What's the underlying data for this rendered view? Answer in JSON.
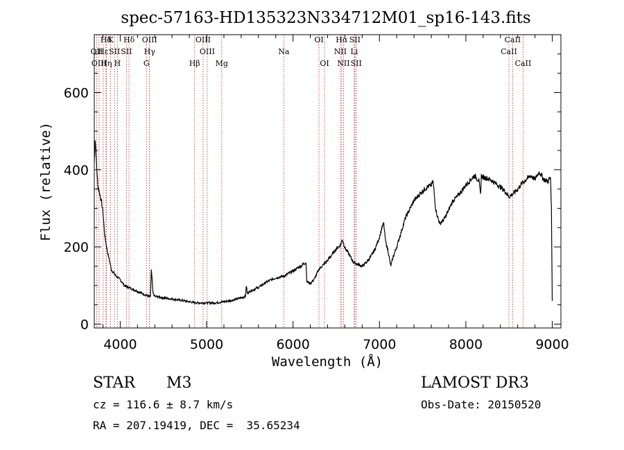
{
  "chart_data": {
    "type": "line",
    "title": "spec-57163-HD135323N334712M01_sp16-143.fits",
    "xlabel": "Wavelength (Å)",
    "ylabel": "Flux (relative)",
    "xlim": [
      3700,
      9100
    ],
    "ylim": [
      -10,
      750
    ],
    "x_ticks": [
      4000,
      5000,
      6000,
      7000,
      8000,
      9000
    ],
    "y_ticks": [
      0,
      200,
      400,
      600
    ],
    "series": [
      {
        "name": "flux",
        "x": [
          3700,
          3710,
          3720,
          3730,
          3740,
          3760,
          3780,
          3800,
          3820,
          3850,
          3880,
          3900,
          3950,
          4000,
          4050,
          4100,
          4150,
          4200,
          4250,
          4300,
          4330,
          4350,
          4360,
          4380,
          4400,
          4500,
          4600,
          4700,
          4800,
          4850,
          4900,
          5000,
          5100,
          5200,
          5300,
          5400,
          5450,
          5460,
          5470,
          5500,
          5600,
          5700,
          5800,
          5850,
          5900,
          6000,
          6100,
          6150,
          6160,
          6200,
          6250,
          6300,
          6400,
          6500,
          6550,
          6570,
          6600,
          6650,
          6700,
          6750,
          6800,
          6850,
          6900,
          6950,
          7000,
          7030,
          7050,
          7070,
          7100,
          7130,
          7160,
          7200,
          7300,
          7400,
          7500,
          7550,
          7600,
          7620,
          7650,
          7670,
          7700,
          7750,
          7800,
          7850,
          7900,
          8000,
          8100,
          8150,
          8170,
          8180,
          8200,
          8250,
          8300,
          8400,
          8450,
          8500,
          8550,
          8600,
          8650,
          8700,
          8750,
          8800,
          8850,
          8900,
          8950,
          8980,
          8990,
          9000
        ],
        "values": [
          420,
          480,
          440,
          400,
          360,
          340,
          320,
          290,
          230,
          190,
          160,
          140,
          125,
          115,
          100,
          95,
          90,
          85,
          80,
          75,
          72,
          70,
          140,
          80,
          72,
          68,
          65,
          62,
          58,
          56,
          55,
          55,
          55,
          58,
          62,
          68,
          72,
          100,
          80,
          85,
          95,
          110,
          120,
          122,
          125,
          138,
          152,
          160,
          110,
          105,
          118,
          142,
          165,
          195,
          205,
          220,
          198,
          180,
          160,
          155,
          150,
          160,
          175,
          195,
          225,
          250,
          260,
          215,
          190,
          150,
          175,
          200,
          275,
          320,
          345,
          355,
          360,
          370,
          300,
          280,
          260,
          272,
          295,
          320,
          330,
          360,
          385,
          372,
          335,
          385,
          380,
          378,
          372,
          355,
          345,
          330,
          338,
          350,
          365,
          375,
          385,
          375,
          395,
          375,
          370,
          380,
          300,
          60
        ]
      }
    ],
    "lines": [
      {
        "label": "Hδ",
        "x": 3835,
        "row": 1
      },
      {
        "label": "OII",
        "x": 3727,
        "row": 2
      },
      {
        "label": "OIII",
        "x": 3755,
        "row": 3
      },
      {
        "label": "Hε",
        "x": 3803,
        "row": 2
      },
      {
        "label": "Hη",
        "x": 3840,
        "row": 3
      },
      {
        "label": "K",
        "x": 3889,
        "row": 1
      },
      {
        "label": "SII",
        "x": 3934,
        "row": 2
      },
      {
        "label": "H",
        "x": 3968,
        "row": 3
      },
      {
        "label": "Hδ",
        "x": 4102,
        "row": 1
      },
      {
        "label": "SII",
        "x": 4072,
        "row": 2
      },
      {
        "label": "OIII",
        "x": 4340,
        "row": 1
      },
      {
        "label": "Hγ",
        "x": 4340,
        "row": 2
      },
      {
        "label": "G",
        "x": 4304,
        "row": 3
      },
      {
        "label": "Hβ",
        "x": 4861,
        "row": 3
      },
      {
        "label": "OIII",
        "x": 4959,
        "row": 1
      },
      {
        "label": "OIII",
        "x": 5007,
        "row": 2
      },
      {
        "label": "Mg",
        "x": 5175,
        "row": 3
      },
      {
        "label": "Na",
        "x": 5893,
        "row": 2
      },
      {
        "label": "OI",
        "x": 6300,
        "row": 1
      },
      {
        "label": "OI",
        "x": 6364,
        "row": 3
      },
      {
        "label": "Hα",
        "x": 6563,
        "row": 1
      },
      {
        "label": "SII",
        "x": 6716,
        "row": 1
      },
      {
        "label": "NII",
        "x": 6548,
        "row": 2
      },
      {
        "label": "Li",
        "x": 6708,
        "row": 2
      },
      {
        "label": "NII",
        "x": 6584,
        "row": 3
      },
      {
        "label": "SII",
        "x": 6731,
        "row": 3
      },
      {
        "label": "CaII",
        "x": 8542,
        "row": 1
      },
      {
        "label": "CaII",
        "x": 8498,
        "row": 2
      },
      {
        "label": "CaII",
        "x": 8662,
        "row": 3
      }
    ]
  },
  "info": {
    "object_class": "STAR",
    "subclass": "M3",
    "survey": "LAMOST DR3",
    "redshift_line": "cz = 116.6 ± 8.7 km/s",
    "obs_date": "Obs-Date: 20150520",
    "coords": "RA = 207.19419, DEC =  35.65234"
  },
  "colors": {
    "line": "#000000",
    "marker": "#cc2222",
    "background": "#ffffff"
  }
}
